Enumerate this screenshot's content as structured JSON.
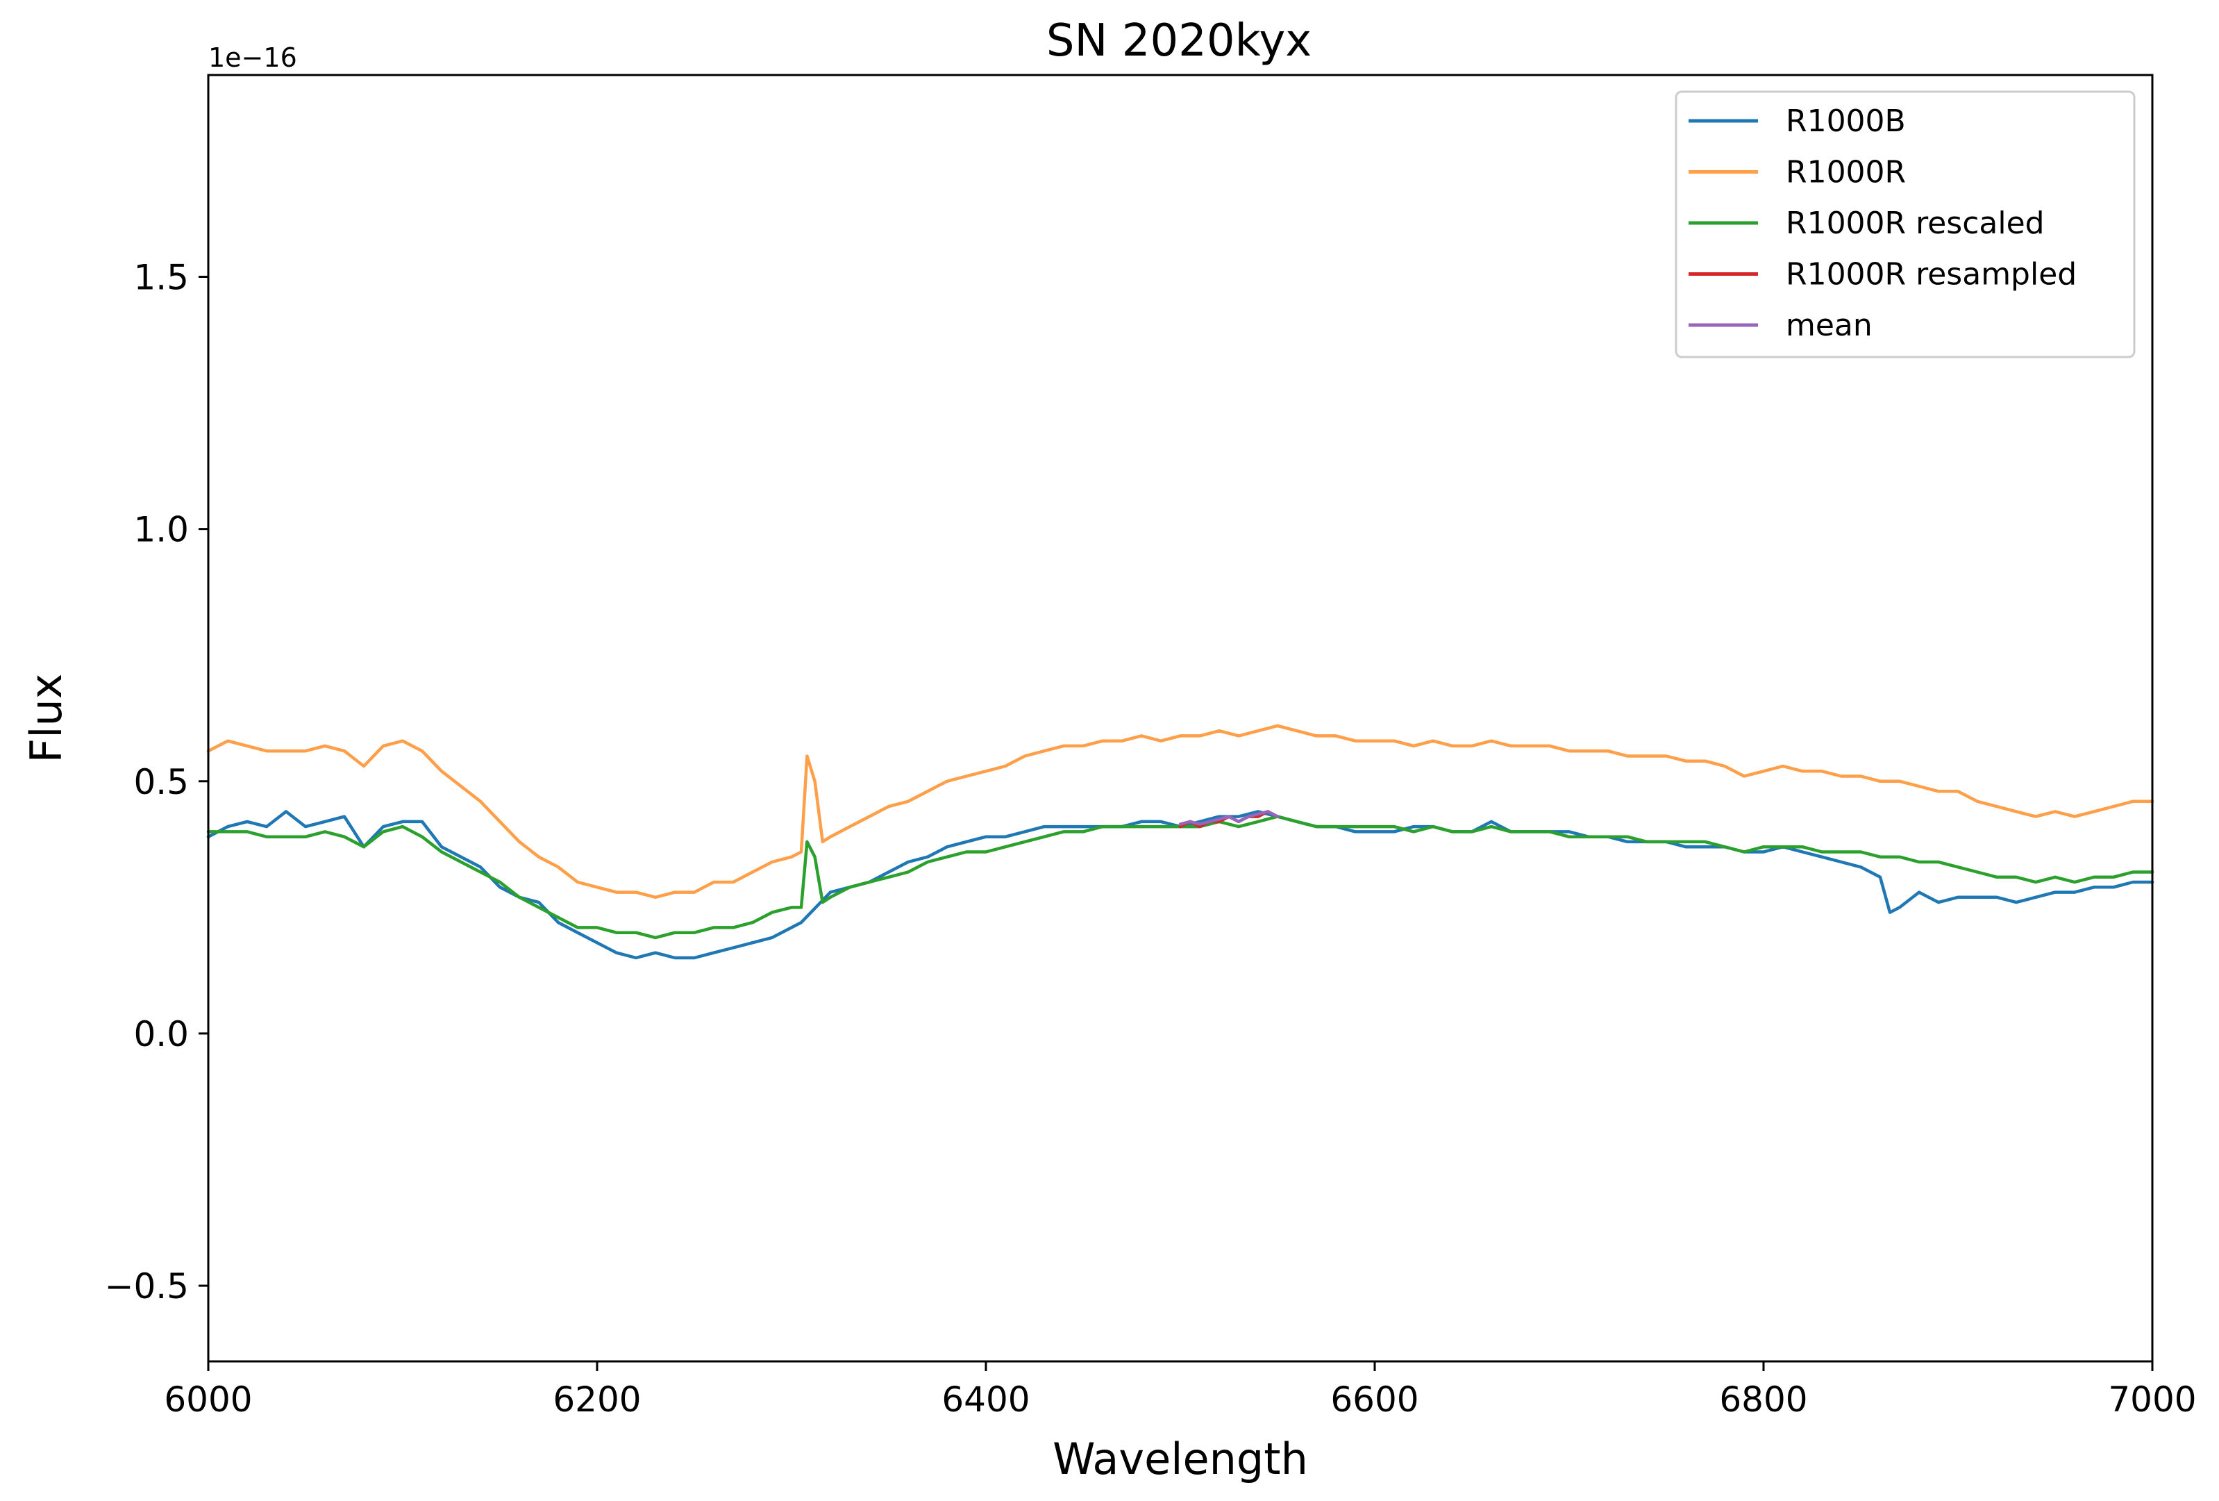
{
  "chart_data": {
    "type": "line",
    "title": "SN 2020kyx",
    "xlabel": "Wavelength",
    "ylabel": "Flux",
    "y_offset_label": "1e−16",
    "y_scale_factor": 1e-16,
    "xlim": [
      6000,
      7000
    ],
    "ylim": [
      -0.65,
      1.9
    ],
    "x_ticks": [
      6000,
      6200,
      6400,
      6600,
      6800,
      7000
    ],
    "x_tick_labels": [
      "6000",
      "6200",
      "6400",
      "6600",
      "6800",
      "7000"
    ],
    "y_ticks": [
      -0.5,
      0.0,
      0.5,
      1.0,
      1.5
    ],
    "y_tick_labels": [
      "−0.5",
      "0.0",
      "0.5",
      "1.0",
      "1.5"
    ],
    "grid": false,
    "legend_position": "top-right",
    "series": [
      {
        "name": "R1000B",
        "color": "#1f77b4",
        "x": [
          6000,
          6010,
          6020,
          6030,
          6040,
          6050,
          6060,
          6070,
          6080,
          6090,
          6100,
          6110,
          6120,
          6130,
          6140,
          6150,
          6160,
          6170,
          6180,
          6190,
          6200,
          6210,
          6220,
          6230,
          6240,
          6250,
          6260,
          6270,
          6280,
          6290,
          6300,
          6305,
          6310,
          6315,
          6320,
          6330,
          6340,
          6350,
          6360,
          6370,
          6380,
          6390,
          6400,
          6410,
          6420,
          6430,
          6440,
          6450,
          6460,
          6470,
          6480,
          6490,
          6500,
          6510,
          6520,
          6530,
          6540,
          6550,
          6560,
          6570,
          6580,
          6590,
          6600,
          6610,
          6620,
          6630,
          6640,
          6650,
          6660,
          6670,
          6680,
          6690,
          6700,
          6710,
          6720,
          6730,
          6740,
          6750,
          6760,
          6770,
          6780,
          6790,
          6800,
          6810,
          6820,
          6830,
          6840,
          6850,
          6860,
          6865,
          6870,
          6880,
          6890,
          6900,
          6910,
          6920,
          6930,
          6940,
          6950,
          6960,
          6970,
          6980,
          6990,
          7000
        ],
        "values": [
          0.39,
          0.41,
          0.42,
          0.41,
          0.44,
          0.41,
          0.42,
          0.43,
          0.37,
          0.41,
          0.42,
          0.42,
          0.37,
          0.35,
          0.33,
          0.29,
          0.27,
          0.26,
          0.22,
          0.2,
          0.18,
          0.16,
          0.15,
          0.16,
          0.15,
          0.15,
          0.16,
          0.17,
          0.18,
          0.19,
          0.21,
          0.22,
          0.24,
          0.26,
          0.28,
          0.29,
          0.3,
          0.32,
          0.34,
          0.35,
          0.37,
          0.38,
          0.39,
          0.39,
          0.4,
          0.41,
          0.41,
          0.41,
          0.41,
          0.41,
          0.42,
          0.42,
          0.41,
          0.42,
          0.43,
          0.43,
          0.44,
          0.43,
          0.42,
          0.41,
          0.41,
          0.4,
          0.4,
          0.4,
          0.41,
          0.41,
          0.4,
          0.4,
          0.42,
          0.4,
          0.4,
          0.4,
          0.4,
          0.39,
          0.39,
          0.38,
          0.38,
          0.38,
          0.37,
          0.37,
          0.37,
          0.36,
          0.36,
          0.37,
          0.36,
          0.35,
          0.34,
          0.33,
          0.31,
          0.24,
          0.25,
          0.28,
          0.26,
          0.27,
          0.27,
          0.27,
          0.26,
          0.27,
          0.28,
          0.28,
          0.29,
          0.29,
          0.3,
          0.3
        ]
      },
      {
        "name": "R1000R",
        "color": "#ff9f4a",
        "x": [
          6000,
          6010,
          6020,
          6030,
          6040,
          6050,
          6060,
          6070,
          6080,
          6090,
          6100,
          6110,
          6120,
          6130,
          6140,
          6150,
          6160,
          6170,
          6180,
          6190,
          6200,
          6210,
          6220,
          6230,
          6240,
          6250,
          6260,
          6270,
          6280,
          6290,
          6300,
          6305,
          6308,
          6312,
          6316,
          6320,
          6330,
          6340,
          6350,
          6360,
          6370,
          6380,
          6390,
          6400,
          6410,
          6420,
          6430,
          6440,
          6450,
          6460,
          6470,
          6480,
          6490,
          6500,
          6510,
          6520,
          6530,
          6540,
          6550,
          6560,
          6570,
          6580,
          6590,
          6600,
          6610,
          6620,
          6630,
          6640,
          6650,
          6660,
          6670,
          6680,
          6690,
          6700,
          6710,
          6720,
          6730,
          6740,
          6750,
          6760,
          6770,
          6780,
          6790,
          6800,
          6810,
          6820,
          6830,
          6840,
          6850,
          6860,
          6870,
          6880,
          6890,
          6900,
          6910,
          6920,
          6930,
          6940,
          6950,
          6960,
          6970,
          6980,
          6990,
          7000
        ],
        "values": [
          0.56,
          0.58,
          0.57,
          0.56,
          0.56,
          0.56,
          0.57,
          0.56,
          0.53,
          0.57,
          0.58,
          0.56,
          0.52,
          0.49,
          0.46,
          0.42,
          0.38,
          0.35,
          0.33,
          0.3,
          0.29,
          0.28,
          0.28,
          0.27,
          0.28,
          0.28,
          0.3,
          0.3,
          0.32,
          0.34,
          0.35,
          0.36,
          0.55,
          0.5,
          0.38,
          0.39,
          0.41,
          0.43,
          0.45,
          0.46,
          0.48,
          0.5,
          0.51,
          0.52,
          0.53,
          0.55,
          0.56,
          0.57,
          0.57,
          0.58,
          0.58,
          0.59,
          0.58,
          0.59,
          0.59,
          0.6,
          0.59,
          0.6,
          0.61,
          0.6,
          0.59,
          0.59,
          0.58,
          0.58,
          0.58,
          0.57,
          0.58,
          0.57,
          0.57,
          0.58,
          0.57,
          0.57,
          0.57,
          0.56,
          0.56,
          0.56,
          0.55,
          0.55,
          0.55,
          0.54,
          0.54,
          0.53,
          0.51,
          0.52,
          0.53,
          0.52,
          0.52,
          0.51,
          0.51,
          0.5,
          0.5,
          0.49,
          0.48,
          0.48,
          0.46,
          0.45,
          0.44,
          0.43,
          0.44,
          0.43,
          0.44,
          0.45,
          0.46,
          0.46
        ]
      },
      {
        "name": "R1000R rescaled",
        "color": "#2ca02c",
        "x": [
          6000,
          6010,
          6020,
          6030,
          6040,
          6050,
          6060,
          6070,
          6080,
          6090,
          6100,
          6110,
          6120,
          6130,
          6140,
          6150,
          6160,
          6170,
          6180,
          6190,
          6200,
          6210,
          6220,
          6230,
          6240,
          6250,
          6260,
          6270,
          6280,
          6290,
          6300,
          6305,
          6308,
          6312,
          6316,
          6320,
          6330,
          6340,
          6350,
          6360,
          6370,
          6380,
          6390,
          6400,
          6410,
          6420,
          6430,
          6440,
          6450,
          6460,
          6470,
          6480,
          6490,
          6500,
          6510,
          6520,
          6530,
          6540,
          6550,
          6560,
          6570,
          6580,
          6590,
          6600,
          6610,
          6620,
          6630,
          6640,
          6650,
          6660,
          6670,
          6680,
          6690,
          6700,
          6710,
          6720,
          6730,
          6740,
          6750,
          6760,
          6770,
          6780,
          6790,
          6800,
          6810,
          6820,
          6830,
          6840,
          6850,
          6860,
          6870,
          6880,
          6890,
          6900,
          6910,
          6920,
          6930,
          6940,
          6950,
          6960,
          6970,
          6980,
          6990,
          7000
        ],
        "values": [
          0.4,
          0.4,
          0.4,
          0.39,
          0.39,
          0.39,
          0.4,
          0.39,
          0.37,
          0.4,
          0.41,
          0.39,
          0.36,
          0.34,
          0.32,
          0.3,
          0.27,
          0.25,
          0.23,
          0.21,
          0.21,
          0.2,
          0.2,
          0.19,
          0.2,
          0.2,
          0.21,
          0.21,
          0.22,
          0.24,
          0.25,
          0.25,
          0.38,
          0.35,
          0.26,
          0.27,
          0.29,
          0.3,
          0.31,
          0.32,
          0.34,
          0.35,
          0.36,
          0.36,
          0.37,
          0.38,
          0.39,
          0.4,
          0.4,
          0.41,
          0.41,
          0.41,
          0.41,
          0.41,
          0.41,
          0.42,
          0.41,
          0.42,
          0.43,
          0.42,
          0.41,
          0.41,
          0.41,
          0.41,
          0.41,
          0.4,
          0.41,
          0.4,
          0.4,
          0.41,
          0.4,
          0.4,
          0.4,
          0.39,
          0.39,
          0.39,
          0.39,
          0.38,
          0.38,
          0.38,
          0.38,
          0.37,
          0.36,
          0.37,
          0.37,
          0.37,
          0.36,
          0.36,
          0.36,
          0.35,
          0.35,
          0.34,
          0.34,
          0.33,
          0.32,
          0.31,
          0.31,
          0.3,
          0.31,
          0.3,
          0.31,
          0.31,
          0.32,
          0.32
        ]
      },
      {
        "name": "R1000R resampled",
        "color": "#d62728",
        "x": [
          6500,
          6505,
          6510,
          6515,
          6520,
          6525,
          6530,
          6535,
          6540,
          6545,
          6550
        ],
        "values": [
          0.41,
          0.42,
          0.41,
          0.42,
          0.42,
          0.43,
          0.42,
          0.43,
          0.43,
          0.44,
          0.43
        ]
      },
      {
        "name": "mean",
        "color": "#9467bd",
        "x": [
          6500,
          6505,
          6510,
          6515,
          6520,
          6525,
          6530,
          6535,
          6540,
          6545,
          6550
        ],
        "values": [
          0.415,
          0.42,
          0.415,
          0.42,
          0.425,
          0.43,
          0.42,
          0.43,
          0.435,
          0.44,
          0.43
        ]
      }
    ]
  }
}
